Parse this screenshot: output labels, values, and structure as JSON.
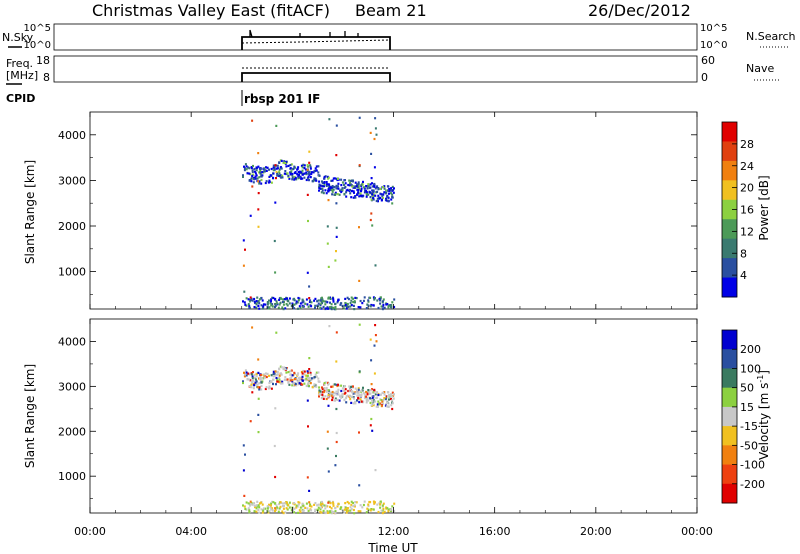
{
  "header": {
    "station": "Christmas Valley East (fitACF)",
    "beam": "Beam 21",
    "date": "26/Dec/2012"
  },
  "panel_labels": {
    "nsky": "N.Sky",
    "nsearch": "N.Search",
    "freq_line1": "Freq.",
    "freq_line2": "[MHz]",
    "nave": "Nave",
    "cpid": "CPID",
    "cpid_value": "rbsp 201 IF"
  },
  "noise_axis": {
    "left_ticks": [
      "10^5",
      "10^0"
    ],
    "right_ticks": [
      "10^5",
      "10^0"
    ]
  },
  "freq_axis": {
    "left_ticks": [
      "18",
      "8"
    ],
    "right_ticks": [
      "60",
      "0"
    ]
  },
  "colors": {
    "power_scale": [
      "#0000e6",
      "#2a4fa0",
      "#3a7a70",
      "#4c9a58",
      "#8cd040",
      "#f0c020",
      "#f08010",
      "#e04010",
      "#e00000"
    ],
    "velocity_scale": [
      "#e00000",
      "#ee4010",
      "#f08010",
      "#f0c020",
      "#c8c8c8",
      "#8cd040",
      "#3a7a60",
      "#2a4fa0",
      "#0000d0"
    ]
  },
  "chart_data": [
    {
      "type": "heatmap",
      "name": "power",
      "ylabel": "Slant Range [km]",
      "y_ticks": [
        "1000",
        "2000",
        "3000",
        "4000"
      ],
      "ylim": [
        180,
        4500
      ],
      "colorbar": {
        "label": "Power [dB]",
        "ticks": [
          "4",
          "8",
          "12",
          "16",
          "20",
          "24",
          "28"
        ],
        "range": [
          0,
          32
        ]
      }
    },
    {
      "type": "heatmap",
      "name": "velocity",
      "ylabel": "Slant Range [km]",
      "y_ticks": [
        "1000",
        "2000",
        "3000",
        "4000"
      ],
      "ylim": [
        180,
        4500
      ],
      "colorbar": {
        "label": "Velocity [m s",
        "label_sup": "-1",
        "label_end": "]",
        "ticks": [
          "200",
          "100",
          "50",
          "15",
          "-15",
          "-50",
          "-100",
          "-200"
        ]
      },
      "data_window": {
        "start_hour": 6.0,
        "end_hour": 12.0
      },
      "main_echo": {
        "start": [
          "06:00",
          3200
        ],
        "end": [
          "12:00",
          2700
        ]
      }
    }
  ],
  "x_axis": {
    "label": "Time UT",
    "ticks": [
      "00:00",
      "04:00",
      "08:00",
      "12:00",
      "16:00",
      "20:00",
      "00:00"
    ],
    "range_hours": [
      0,
      24
    ]
  }
}
